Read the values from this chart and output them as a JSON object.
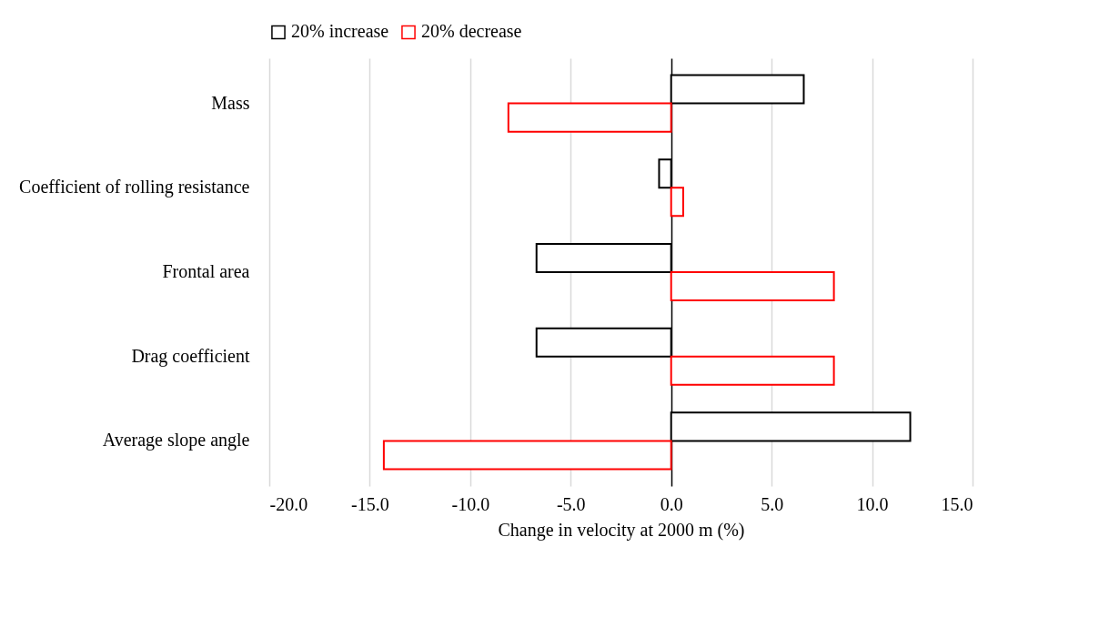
{
  "chart_data": {
    "type": "bar",
    "orientation": "horizontal",
    "xlabel": "Change in velocity at 2000 m (%)",
    "categories": [
      "Mass",
      "Coefficient of rolling resistance",
      "Frontal area",
      "Drag coefficient",
      "Average slope angle"
    ],
    "series": [
      {
        "name": "20% increase",
        "color": "#000000",
        "values": [
          6.6,
          -0.6,
          -6.7,
          -6.7,
          11.9
        ]
      },
      {
        "name": "20% decrease",
        "color": "#ff0000",
        "values": [
          -8.1,
          0.6,
          8.1,
          8.1,
          -14.3
        ]
      }
    ],
    "xlim": [
      -20,
      15
    ],
    "xticks": [
      {
        "value": -20,
        "label": "-20.0"
      },
      {
        "value": -15,
        "label": "-15.0"
      },
      {
        "value": -10,
        "label": "-10.0"
      },
      {
        "value": -5,
        "label": "-5.0"
      },
      {
        "value": 0,
        "label": "0.0"
      },
      {
        "value": 5,
        "label": "5.0"
      },
      {
        "value": 10,
        "label": "10.0"
      },
      {
        "value": 15,
        "label": "15.0"
      }
    ],
    "grid": "x",
    "legend": "top"
  }
}
